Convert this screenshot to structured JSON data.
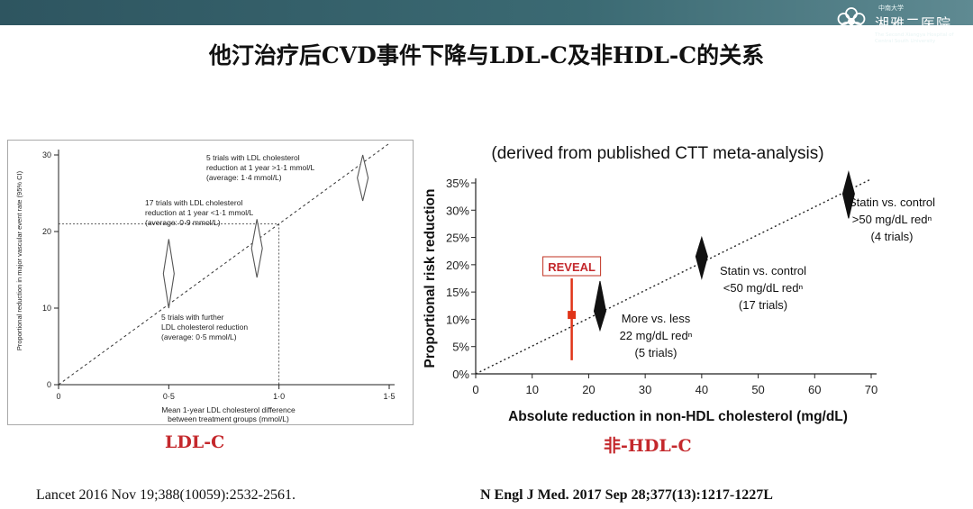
{
  "header": {
    "logo_university": "中南大学",
    "logo_hospital": "湘雅二医院",
    "logo_english": "The Second Xiangya Hospital of Central South University"
  },
  "title": "他汀治疗后CVD事件下降与LDL-C及非HDL-C的关系",
  "colors": {
    "accent_red": "#c4282c",
    "marker_red": "#e03418",
    "header_teal": "#3b6a73"
  },
  "chart_data": [
    {
      "type": "scatter",
      "xlabel": "Mean 1-year LDL cholesterol difference between treatment groups (mmol/L)",
      "xlabel_lines": [
        "Mean 1-year LDL cholesterol difference",
        "between treatment groups (mmol/L)"
      ],
      "ylabel": "Proportional reduction in major vascular event rate (95% CI)",
      "xlim": [
        0,
        1.5
      ],
      "ylim": [
        0,
        30
      ],
      "xticks": [
        0,
        0.5,
        1.0,
        1.5
      ],
      "xtick_labels": [
        "0",
        "0·5",
        "1·0",
        "1·5"
      ],
      "yticks": [
        0,
        10,
        20,
        30
      ],
      "ytick_labels": [
        "0",
        "10",
        "20",
        "30"
      ],
      "trend_line": {
        "x": [
          0,
          1.5
        ],
        "y": [
          0,
          31.5
        ],
        "style": "dotted"
      },
      "reference_lines": {
        "x": 1.0,
        "y": 21
      },
      "points": [
        {
          "x": 0.5,
          "y": 14.5,
          "ci": [
            10,
            19
          ]
        },
        {
          "x": 0.9,
          "y": 17.8,
          "ci": [
            14,
            21.6
          ]
        },
        {
          "x": 1.38,
          "y": 27,
          "ci": [
            24,
            30
          ]
        }
      ],
      "annotations": [
        {
          "lines": [
            "5 trials with further",
            "LDL cholesterol reduction",
            "(average: 0·5 mmol/L)"
          ]
        },
        {
          "lines": [
            "17 trials with LDL cholesterol",
            "reduction at 1 year <1·1 mmol/L",
            "(average: 0·9 mmol/L)"
          ]
        },
        {
          "lines": [
            "5 trials with LDL cholesterol",
            "reduction at 1 year >1·1 mmol/L",
            "(average: 1·4 mmol/L)"
          ]
        }
      ],
      "caption": "LDL-C"
    },
    {
      "type": "scatter",
      "title": "(derived from published CTT meta-analysis)",
      "xlabel": "Absolute reduction in non-HDL cholesterol (mg/dL)",
      "ylabel": "Proportional risk reduction",
      "xlim": [
        0,
        70
      ],
      "ylim": [
        0,
        35
      ],
      "xticks": [
        0,
        10,
        20,
        30,
        40,
        50,
        60,
        70
      ],
      "xtick_labels": [
        "0",
        "10",
        "20",
        "30",
        "40",
        "50",
        "60",
        "70"
      ],
      "yticks": [
        0,
        5,
        10,
        15,
        20,
        25,
        30,
        35
      ],
      "ytick_labels": [
        "0%",
        "5%",
        "10%",
        "15%",
        "20%",
        "25%",
        "30%",
        "35%"
      ],
      "trend_line": {
        "x": [
          0,
          70
        ],
        "y": [
          0,
          35.7
        ],
        "style": "dotted"
      },
      "points": [
        {
          "x": 22,
          "y": 11.5,
          "ci": [
            8,
            17
          ]
        },
        {
          "x": 40,
          "y": 21.5,
          "ci": [
            17.5,
            25
          ]
        },
        {
          "x": 66,
          "y": 33,
          "ci": [
            28.5,
            37
          ]
        }
      ],
      "highlight_point": {
        "name": "REVEAL",
        "x": 17,
        "y": 10.8,
        "ci": [
          2.5,
          17.5
        ]
      },
      "annotations": [
        {
          "lines": [
            "More vs. less",
            "22 mg/dL redⁿ",
            "(5 trials)"
          ]
        },
        {
          "lines": [
            "Statin vs. control",
            "<50 mg/dL redⁿ",
            "(17 trials)"
          ]
        },
        {
          "lines": [
            "Statin vs. control",
            ">50 mg/dL redⁿ",
            "(4 trials)"
          ]
        }
      ],
      "caption": "非-HDL-C"
    }
  ],
  "references": {
    "left": "Lancet 2016 Nov 19;388(10059):2532-2561.",
    "right": "N Engl J Med. 2017 Sep 28;377(13):1217-1227L"
  }
}
